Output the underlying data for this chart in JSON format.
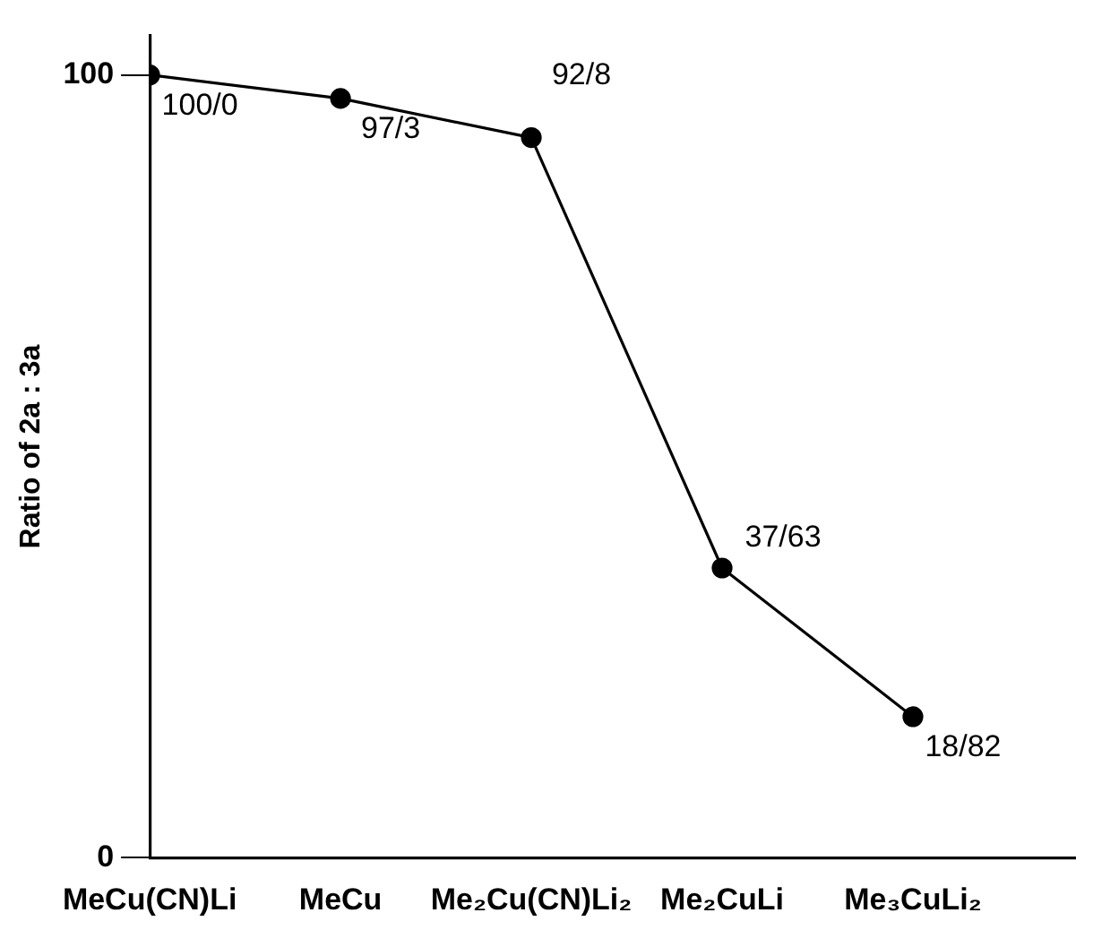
{
  "chart_data": {
    "type": "line",
    "ylabel": "Ratio of 2a : 3a",
    "categories": [
      "MeCu(CN)Li",
      "MeCu",
      "Me₂Cu(CN)Li₂",
      "Me₂CuLi",
      "Me₃CuLi₂"
    ],
    "series": [
      {
        "color": "#000000",
        "values": [
          100,
          97,
          92,
          37,
          18
        ],
        "value_labels": [
          "100/0",
          "97/3",
          "92/8",
          "37/63",
          "18/82"
        ]
      }
    ],
    "ylim": [
      0,
      105
    ],
    "yticks": [
      0,
      100
    ],
    "grid": false,
    "legend": false,
    "marker": "circle",
    "line_style": "solid"
  }
}
